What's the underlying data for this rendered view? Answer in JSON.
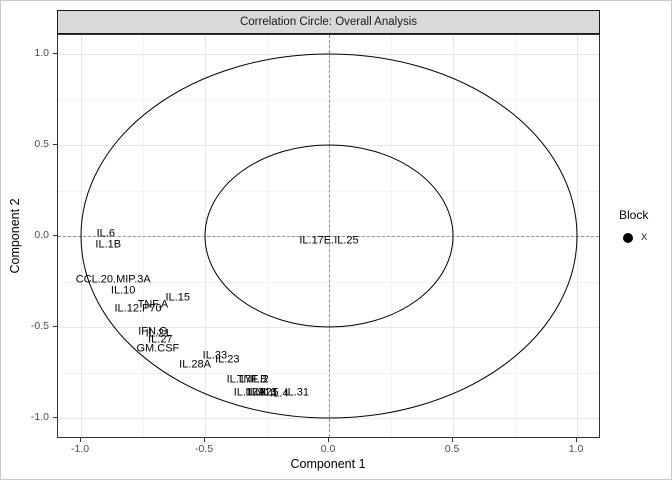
{
  "chart_data": {
    "type": "scatter",
    "title": "Correlation Circle: Overall Analysis",
    "xlabel": "Component 1",
    "ylabel": "Component 2",
    "xlim": [
      -1.09,
      1.1
    ],
    "ylim": [
      -1.11,
      1.1
    ],
    "grid": "on",
    "circle_radii": [
      1.0,
      0.5
    ],
    "zero_lines": "dashed at x=0 and y=0",
    "x_ticks": [
      {
        "v": -1.0,
        "label": "-1.0"
      },
      {
        "v": -0.5,
        "label": "-0.5"
      },
      {
        "v": 0.0,
        "label": "0.0"
      },
      {
        "v": 0.5,
        "label": "0.5"
      },
      {
        "v": 1.0,
        "label": "1.0"
      }
    ],
    "y_ticks": [
      {
        "v": -1.0,
        "label": "-1.0"
      },
      {
        "v": -0.5,
        "label": "-0.5"
      },
      {
        "v": 0.0,
        "label": "0.0"
      },
      {
        "v": 0.5,
        "label": "0.5"
      },
      {
        "v": 1.0,
        "label": "1.0"
      }
    ],
    "x_minor": [
      -0.75,
      -0.25,
      0.25,
      0.75
    ],
    "y_minor": [
      -0.75,
      -0.25,
      0.25,
      0.75
    ],
    "legend": {
      "title": "Block",
      "position": "right",
      "items": [
        {
          "label": "X",
          "marker": "filled-circle",
          "color": "#000000"
        }
      ]
    },
    "points": [
      {
        "label": "IL.6",
        "x": -0.9,
        "y": 0.01
      },
      {
        "label": "IL.1B",
        "x": -0.89,
        "y": -0.05
      },
      {
        "label": "CCL.20.MIP.3A",
        "x": -0.87,
        "y": -0.24
      },
      {
        "label": "IL.10",
        "x": -0.83,
        "y": -0.3
      },
      {
        "label": "IL.15",
        "x": -0.61,
        "y": -0.34
      },
      {
        "label": "TNF.A",
        "x": -0.71,
        "y": -0.38
      },
      {
        "label": "IL.12.P70",
        "x": -0.77,
        "y": -0.4
      },
      {
        "label": "IFN.G",
        "x": -0.71,
        "y": -0.53
      },
      {
        "label": "IL.21",
        "x": -0.69,
        "y": -0.54
      },
      {
        "label": "IL.27",
        "x": -0.68,
        "y": -0.57
      },
      {
        "label": "GM.CSF",
        "x": -0.69,
        "y": -0.62
      },
      {
        "label": "IL.33",
        "x": -0.46,
        "y": -0.66
      },
      {
        "label": "IL.23",
        "x": -0.41,
        "y": -0.68
      },
      {
        "label": "IL.28A",
        "x": -0.54,
        "y": -0.71
      },
      {
        "label": "IL.17F",
        "x": -0.35,
        "y": -0.79
      },
      {
        "label": "TNF.B",
        "x": -0.31,
        "y": -0.79
      },
      {
        "label": "IL.2",
        "x": -0.28,
        "y": -0.79
      },
      {
        "label": "IL.17A",
        "x": -0.32,
        "y": -0.86
      },
      {
        "label": "IL.9",
        "x": -0.3,
        "y": -0.86
      },
      {
        "label": "IL.22",
        "x": -0.28,
        "y": -0.86
      },
      {
        "label": "IL.13",
        "x": -0.26,
        "y": -0.86
      },
      {
        "label": "IL.5",
        "x": -0.24,
        "y": -0.86
      },
      {
        "label": "IL.4",
        "x": -0.2,
        "y": -0.87
      },
      {
        "label": "IL.31",
        "x": -0.13,
        "y": -0.86
      },
      {
        "label": "IL.17E.IL.25",
        "x": 0.0,
        "y": -0.03
      }
    ]
  },
  "colors": {
    "strip_fill": "#d9d9d9",
    "panel_border": "#333333",
    "grid_major": "#e8e8e8",
    "grid_minor": "#f4f4f4",
    "dashed_zero": "#969696",
    "circle_stroke": "#000000",
    "label_text": "#000000",
    "tick_text": "#4d4d4d"
  }
}
